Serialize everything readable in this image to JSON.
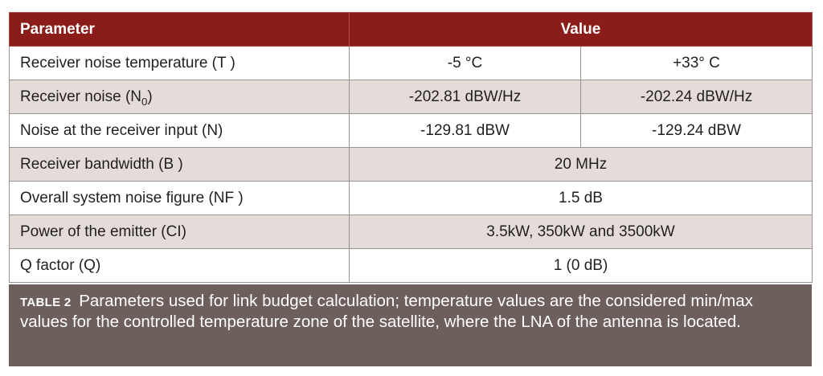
{
  "table": {
    "header": {
      "parameter": "Parameter",
      "value": "Value"
    },
    "rows": [
      {
        "parameter": "Receiver noise temperature (T )",
        "v1": "-5 °C",
        "v2": "+33° C"
      },
      {
        "parameter": "Receiver noise (N",
        "parameter_sub": "0",
        "parameter_end": ")",
        "v1": "-202.81 dBW/Hz",
        "v2": "-202.24 dBW/Hz"
      },
      {
        "parameter": "Noise at the receiver input (N)",
        "v1": "-129.81 dBW",
        "v2": "-129.24 dBW"
      },
      {
        "parameter": "Receiver bandwidth (B )",
        "value": "20 MHz"
      },
      {
        "parameter": "Overall system noise figure (NF )",
        "value": "1.5 dB"
      },
      {
        "parameter": "Power of the emitter (CI)",
        "value": "3.5kW, 350kW and 3500kW"
      },
      {
        "parameter": "Q factor (Q)",
        "value": "1 (0 dB)"
      }
    ]
  },
  "caption": {
    "label": "TABLE 2",
    "text": "Parameters used for link budget calculation; temperature values are the considered min/max values for the controlled temperature zone of the satellite, where the LNA of the antenna is located."
  },
  "colors": {
    "header_bg": "#8a1c1a",
    "row_alt_bg": "#e3dcd8",
    "caption_bg": "#6c5f5c"
  }
}
